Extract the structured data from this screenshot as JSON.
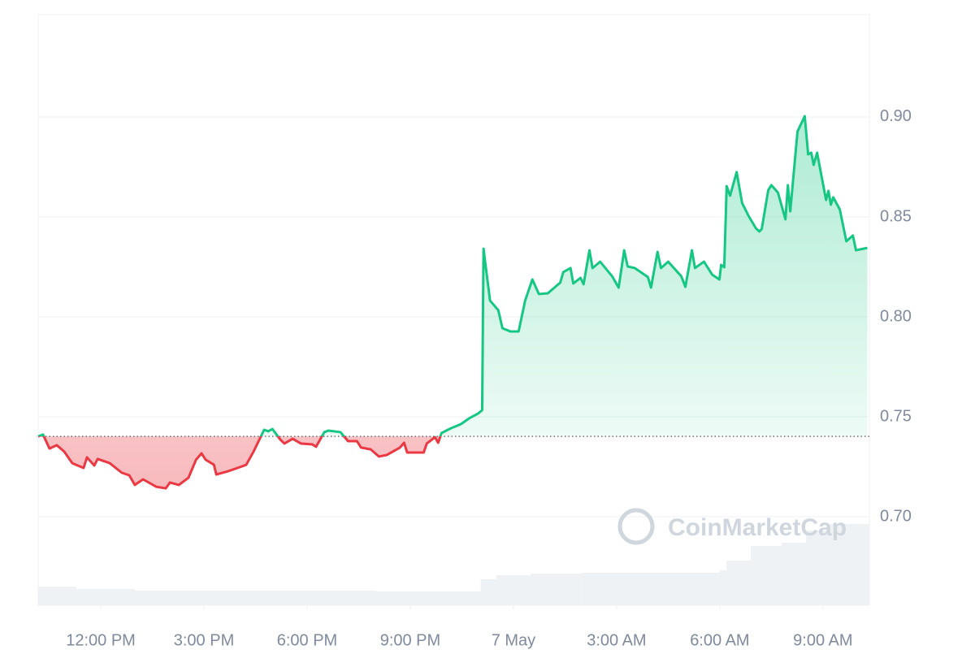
{
  "chart_data": {
    "type": "line",
    "watermark": "CoinMarketCap",
    "x": [
      -1.82,
      -1.68,
      -1.49,
      -1.28,
      -1.06,
      -0.83,
      -0.5,
      -0.4,
      -0.19,
      -0.09,
      0.26,
      0.61,
      0.83,
      0.99,
      1.23,
      1.61,
      1.89,
      2.01,
      2.27,
      2.55,
      2.77,
      2.93,
      3.05,
      3.29,
      3.36,
      3.71,
      4.11,
      4.23,
      4.44,
      4.75,
      4.87,
      4.99,
      5.22,
      5.34,
      5.58,
      5.82,
      6.15,
      6.26,
      6.5,
      6.62,
      6.97,
      7.19,
      7.45,
      7.57,
      7.85,
      8.09,
      8.32,
      8.7,
      8.82,
      8.91,
      9.39,
      9.48,
      9.72,
      9.81,
      9.91,
      10.19,
      10.47,
      10.71,
      10.97,
      11.09,
      11.13,
      11.23,
      11.32,
      11.56,
      11.68,
      11.91,
      12.15,
      12.34,
      12.55,
      12.74,
      13.0,
      13.36,
      13.45,
      13.66,
      13.74,
      13.95,
      14.04,
      14.21,
      14.3,
      14.52,
      14.87,
      15.06,
      15.22,
      15.32,
      15.53,
      15.91,
      16.0,
      16.19,
      16.29,
      16.5,
      16.88,
      17.0,
      17.19,
      17.28,
      17.54,
      17.78,
      17.99,
      18.04,
      18.13,
      18.2,
      18.3,
      18.49,
      18.65,
      18.84,
      19.05,
      19.15,
      19.22,
      19.41,
      19.5,
      19.69,
      19.91,
      19.98,
      20.05,
      20.26,
      20.47,
      20.57,
      20.66,
      20.73,
      20.83,
      21.09,
      21.16,
      21.23,
      21.3,
      21.49,
      21.68,
      21.87,
      21.96,
      22.29
    ],
    "values": [
      0.7402,
      0.7411,
      0.7341,
      0.7358,
      0.7325,
      0.7268,
      0.7244,
      0.7297,
      0.7256,
      0.7289,
      0.7268,
      0.722,
      0.7207,
      0.7159,
      0.7187,
      0.715,
      0.7142,
      0.7171,
      0.7159,
      0.7195,
      0.7285,
      0.7317,
      0.7285,
      0.726,
      0.7211,
      0.7228,
      0.7252,
      0.726,
      0.7325,
      0.7435,
      0.7427,
      0.7439,
      0.7386,
      0.7366,
      0.739,
      0.7366,
      0.7362,
      0.735,
      0.7423,
      0.7431,
      0.7423,
      0.7378,
      0.7378,
      0.7346,
      0.7337,
      0.7301,
      0.7309,
      0.7346,
      0.737,
      0.7321,
      0.7321,
      0.7366,
      0.7398,
      0.737,
      0.7419,
      0.7443,
      0.7463,
      0.7492,
      0.7516,
      0.7533,
      0.8341,
      0.8203,
      0.8081,
      0.8033,
      0.7943,
      0.7927,
      0.7927,
      0.8081,
      0.8187,
      0.8114,
      0.8118,
      0.8171,
      0.8224,
      0.8244,
      0.8167,
      0.8195,
      0.8163,
      0.8333,
      0.8244,
      0.8276,
      0.8203,
      0.8146,
      0.8333,
      0.8252,
      0.8244,
      0.8199,
      0.8146,
      0.8325,
      0.8244,
      0.8276,
      0.8203,
      0.815,
      0.8333,
      0.8244,
      0.8276,
      0.8211,
      0.8187,
      0.826,
      0.8248,
      0.8654,
      0.8606,
      0.8724,
      0.8569,
      0.8504,
      0.8443,
      0.8427,
      0.8439,
      0.8634,
      0.8659,
      0.8622,
      0.8488,
      0.8659,
      0.8528,
      0.8927,
      0.9004,
      0.8813,
      0.8821,
      0.876,
      0.8821,
      0.8585,
      0.863,
      0.8561,
      0.8598,
      0.8537,
      0.8378,
      0.8407,
      0.8333,
      0.8345
    ],
    "baseline": 0.7402,
    "up_color": "#16c784",
    "down_color": "#ea3943",
    "volume": {
      "x": [
        -1.82,
        -0.7,
        1.0,
        8.0,
        11.05,
        11.5,
        12.5,
        14.0,
        18.0,
        18.2,
        18.9,
        19.8,
        20.5,
        21.2
      ],
      "values": [
        23,
        20,
        18,
        17,
        32,
        37,
        39,
        40,
        43,
        55,
        73,
        77,
        92,
        100
      ],
      "lim": [
        0,
        100
      ],
      "end": 22.35,
      "color": "#eff2f5"
    },
    "xlim": [
      -1.82,
      22.35
    ],
    "xticks": [
      {
        "value": 0,
        "label": "12:00 PM"
      },
      {
        "value": 3,
        "label": "3:00 PM"
      },
      {
        "value": 6,
        "label": "6:00 PM"
      },
      {
        "value": 9,
        "label": "9:00 PM"
      },
      {
        "value": 12,
        "label": "7 May"
      },
      {
        "value": 15,
        "label": "3:00 AM"
      },
      {
        "value": 18,
        "label": "6:00 AM"
      },
      {
        "value": 21,
        "label": "9:00 AM"
      }
    ],
    "ylim": [
      0.6557,
      0.9512
    ],
    "yticks": [
      {
        "value": 0.7,
        "label": "0.70"
      },
      {
        "value": 0.75,
        "label": "0.75"
      },
      {
        "value": 0.8,
        "label": "0.80"
      },
      {
        "value": 0.85,
        "label": "0.85"
      },
      {
        "value": 0.9,
        "label": "0.90"
      }
    ],
    "grid": true
  }
}
